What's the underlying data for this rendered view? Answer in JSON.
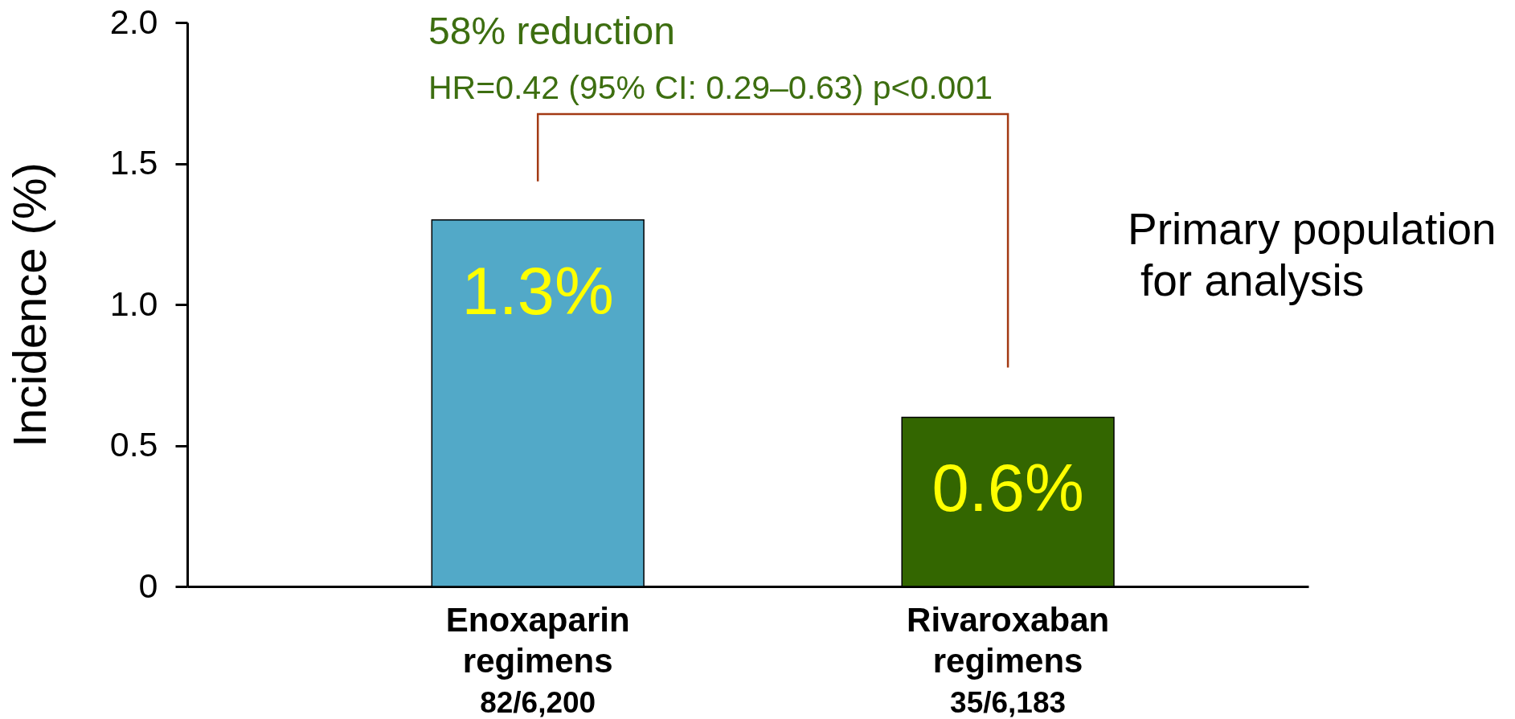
{
  "chart_data": {
    "type": "bar",
    "categories": [
      "Enoxaparin regimens",
      "Rivaroxaban regimens"
    ],
    "values": [
      1.3,
      0.6
    ],
    "colors": [
      "#52a9c8",
      "#336600"
    ],
    "value_labels": [
      "1.3%",
      "0.6%"
    ],
    "ylabel": "Incidence (%)",
    "ylim": [
      0,
      2
    ],
    "yticks": [
      0,
      0.5,
      {
        "value": 1,
        "label": "1.0"
      },
      1.5,
      {
        "value": 2,
        "label": "2.0"
      }
    ],
    "annotations": [
      "58% reduction",
      "HR=0.42 (95% CI: 0.29–0.63) p<0.001",
      "Primary population",
      "for analysis",
      "82/6,200",
      "35/6,183"
    ]
  }
}
